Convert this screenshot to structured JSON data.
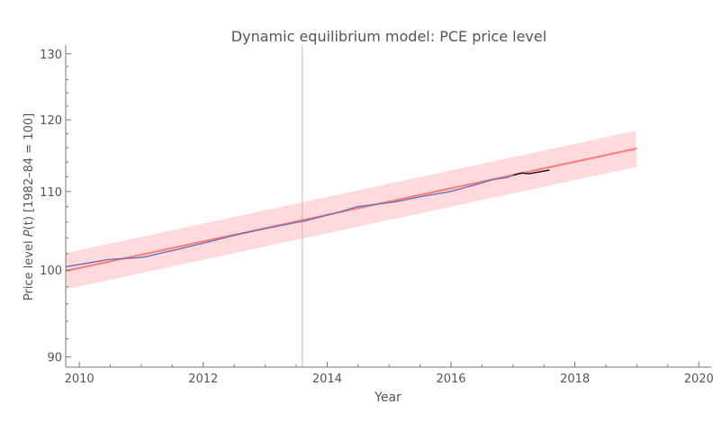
{
  "chart_data": {
    "type": "line",
    "title": "Dynamic equilibrium model: PCE price level",
    "xlabel": "Year",
    "ylabel_prefix": "Price level ",
    "ylabel_var": "P",
    "ylabel_arg": "(t)",
    "ylabel_suffix": " [1982–84 = 100]",
    "xlim": [
      2009.78,
      2020.2
    ],
    "ylim": [
      88.9,
      131.4
    ],
    "yscale": "log",
    "x_ticks": [
      "2010",
      "2012",
      "2014",
      "2016",
      "2018",
      "2020"
    ],
    "y_ticks": [
      "90",
      "100",
      "110",
      "120",
      "130"
    ],
    "grid": false,
    "vertical_marker_x": 2013.6,
    "model": {
      "x0": 2009.78,
      "y0": 99.9,
      "x1": 2019.0,
      "y1": 115.9,
      "color": "#ff7b7b"
    },
    "band": {
      "relative_halfwidth": 0.022,
      "color": "#ffdadc"
    },
    "series": [
      {
        "color": "#6b72b5",
        "x": [
          2009.78,
          2010.17,
          2010.47,
          2010.9,
          2011.05,
          2011.27,
          2011.56,
          2011.99,
          2012.5,
          2013.08,
          2013.67,
          2014.15,
          2014.49,
          2015.08,
          2015.56,
          2015.99,
          2016.43,
          2016.68,
          2016.91,
          2017.01
        ],
        "y": [
          100.4,
          100.9,
          101.3,
          101.5,
          101.6,
          102.0,
          102.5,
          103.3,
          104.3,
          105.3,
          106.2,
          107.2,
          108.0,
          108.6,
          109.4,
          110.0,
          111.0,
          111.6,
          111.9,
          112.2
        ]
      },
      {
        "color": "#111111",
        "x": [
          2017.01,
          2017.13,
          2017.26,
          2017.59
        ],
        "y": [
          112.2,
          112.5,
          112.4,
          112.9
        ]
      }
    ]
  }
}
